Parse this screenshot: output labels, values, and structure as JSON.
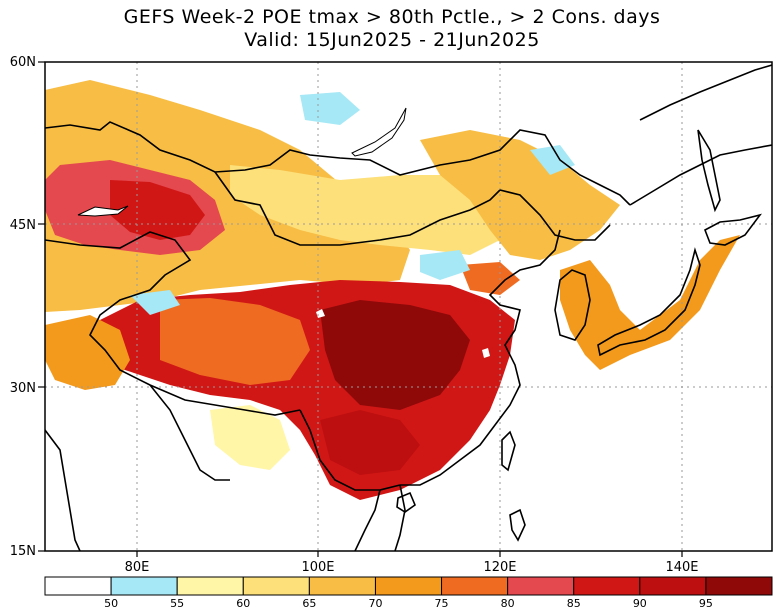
{
  "title": {
    "line1": "GEFS Week-2 POE tmax > 80th Pctle., > 2 Cons. days",
    "line2": "Valid: 15Jun2025 - 21Jun2025"
  },
  "axes": {
    "lat_labels": [
      "60N",
      "45N",
      "30N",
      "15N"
    ],
    "lon_labels": [
      "80E",
      "100E",
      "120E",
      "140E"
    ]
  },
  "colorbar": {
    "levels": [
      "50",
      "55",
      "60",
      "65",
      "70",
      "75",
      "80",
      "85",
      "90",
      "95"
    ],
    "colors": [
      "#ffffff",
      "#a6e8f5",
      "#fff6a8",
      "#fde07a",
      "#f7bd45",
      "#f39a1d",
      "#ef6b22",
      "#e4494f",
      "#d11716",
      "#bd0f0f",
      "#8f0909"
    ]
  },
  "map_colors": {
    "background": "#ffffff",
    "grid": "#9a9a9a",
    "outline": "#000000"
  }
}
